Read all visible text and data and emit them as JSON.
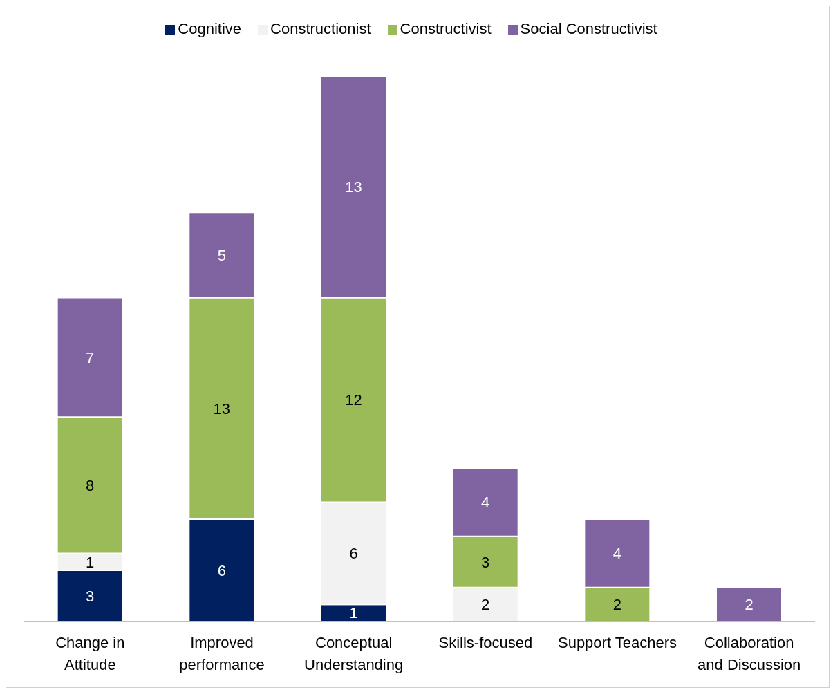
{
  "chart_data": {
    "type": "bar",
    "stacked": true,
    "data_labels": true,
    "legend": "top",
    "grid": false,
    "categories": [
      "Change in Attitude",
      "Improved performance",
      "Conceptual Understanding",
      "Skills-focused",
      "Support Teachers",
      "Collaboration and Discussion"
    ],
    "series": [
      {
        "name": "Cognitive",
        "color": "#002060",
        "values": [
          3,
          6,
          1,
          null,
          null,
          null
        ]
      },
      {
        "name": "Constructionist",
        "color": "#f2f2f2",
        "values": [
          1,
          null,
          6,
          2,
          null,
          null
        ]
      },
      {
        "name": "Constructivist",
        "color": "#9bbb59",
        "values": [
          8,
          13,
          12,
          3,
          2,
          null
        ]
      },
      {
        "name": "Social Constructivist",
        "color": "#8064a2",
        "values": [
          7,
          5,
          13,
          4,
          4,
          2
        ]
      }
    ]
  }
}
